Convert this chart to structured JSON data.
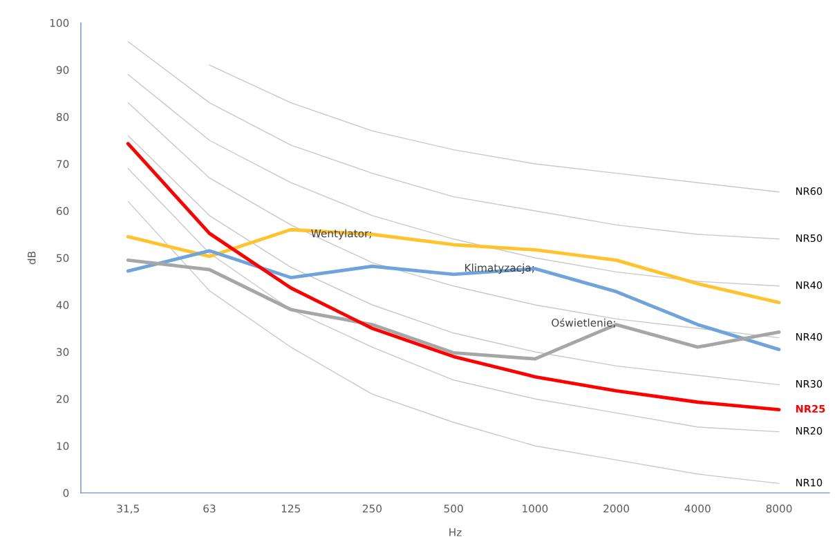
{
  "chart_data": {
    "type": "line",
    "xlabel": "Hz",
    "ylabel": "dB",
    "categories": [
      "31,5",
      "63",
      "125",
      "250",
      "500",
      "1000",
      "2000",
      "4000",
      "8000"
    ],
    "ylim": [
      0,
      100
    ],
    "yticks": [
      0,
      10,
      20,
      30,
      40,
      50,
      60,
      70,
      80,
      90,
      100
    ],
    "grid": false,
    "legend": false,
    "marker": "none",
    "line_style": "solid",
    "series": [
      {
        "name": "NR60",
        "color": "#c8c8c8",
        "values": [
          null,
          91,
          83,
          77,
          73,
          70,
          68,
          66,
          64
        ]
      },
      {
        "name": "NR50",
        "color": "#c8c8c8",
        "values": [
          96,
          83,
          74,
          68,
          63,
          60,
          57,
          55,
          54
        ]
      },
      {
        "name": "NR40",
        "color": "#c8c8c8",
        "values": [
          89,
          75,
          66,
          59,
          54,
          50,
          47,
          45,
          44
        ]
      },
      {
        "name": "NR40",
        "color": "#c8c8c8",
        "values": [
          83,
          67,
          57,
          49,
          44,
          40,
          37,
          35,
          33
        ]
      },
      {
        "name": "NR30",
        "color": "#c8c8c8",
        "values": [
          76,
          59,
          48,
          40,
          34,
          30,
          27,
          25,
          23
        ]
      },
      {
        "name": "NR20",
        "color": "#c8c8c8",
        "values": [
          69,
          51,
          39,
          31,
          24,
          20,
          17,
          14,
          13
        ]
      },
      {
        "name": "NR10",
        "color": "#c8c8c8",
        "values": [
          62,
          43,
          31,
          21,
          15,
          10,
          7,
          4,
          2
        ]
      },
      {
        "color": "#ffc42d",
        "values": [
          54.5,
          50.3,
          56,
          55,
          52.8,
          51.7,
          49.5,
          44.5,
          40.5
        ]
      },
      {
        "color": "#6fa3dc",
        "values": [
          47.2,
          51.5,
          45.8,
          48.2,
          46.5,
          47.7,
          42.8,
          35.8,
          30.5
        ]
      },
      {
        "color": "#a6a6a6",
        "values": [
          49.5,
          47.5,
          39,
          35.8,
          29.8,
          28.5,
          35.8,
          31,
          34.2
        ]
      },
      {
        "name": "NR25",
        "color": "#ff0000",
        "values": [
          74.3,
          55.2,
          43.6,
          35,
          29,
          24.7,
          21.7,
          19.3,
          17.7
        ]
      }
    ],
    "annotations": [
      {
        "text": "Wentylator;",
        "x": "250",
        "y": 55
      },
      {
        "text": "Klimatyzacja;",
        "x": "1000",
        "y": 47.7
      },
      {
        "text": "Oświetlenie;",
        "x": "2000",
        "y": 36
      }
    ]
  }
}
